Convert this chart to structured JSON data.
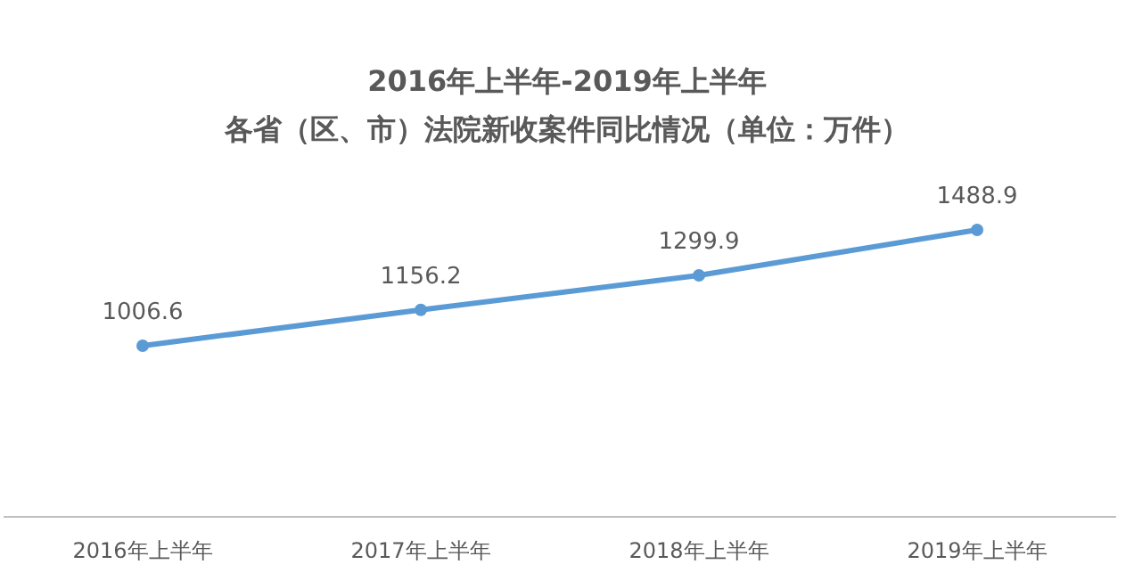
{
  "chart_data": {
    "type": "line",
    "title": "2016年上半年-2019年上半年",
    "subtitle": "各省（区、市）法院新收案件同比情况（单位：万件）",
    "categories": [
      "2016年上半年",
      "2017年上半年",
      "2018年上半年",
      "2019年上半年"
    ],
    "series": [
      {
        "color": "#5b9bd5",
        "values": [
          1006.6,
          1156.2,
          1299.9,
          1488.9
        ]
      }
    ],
    "data_labels": true,
    "marker": "circle"
  }
}
